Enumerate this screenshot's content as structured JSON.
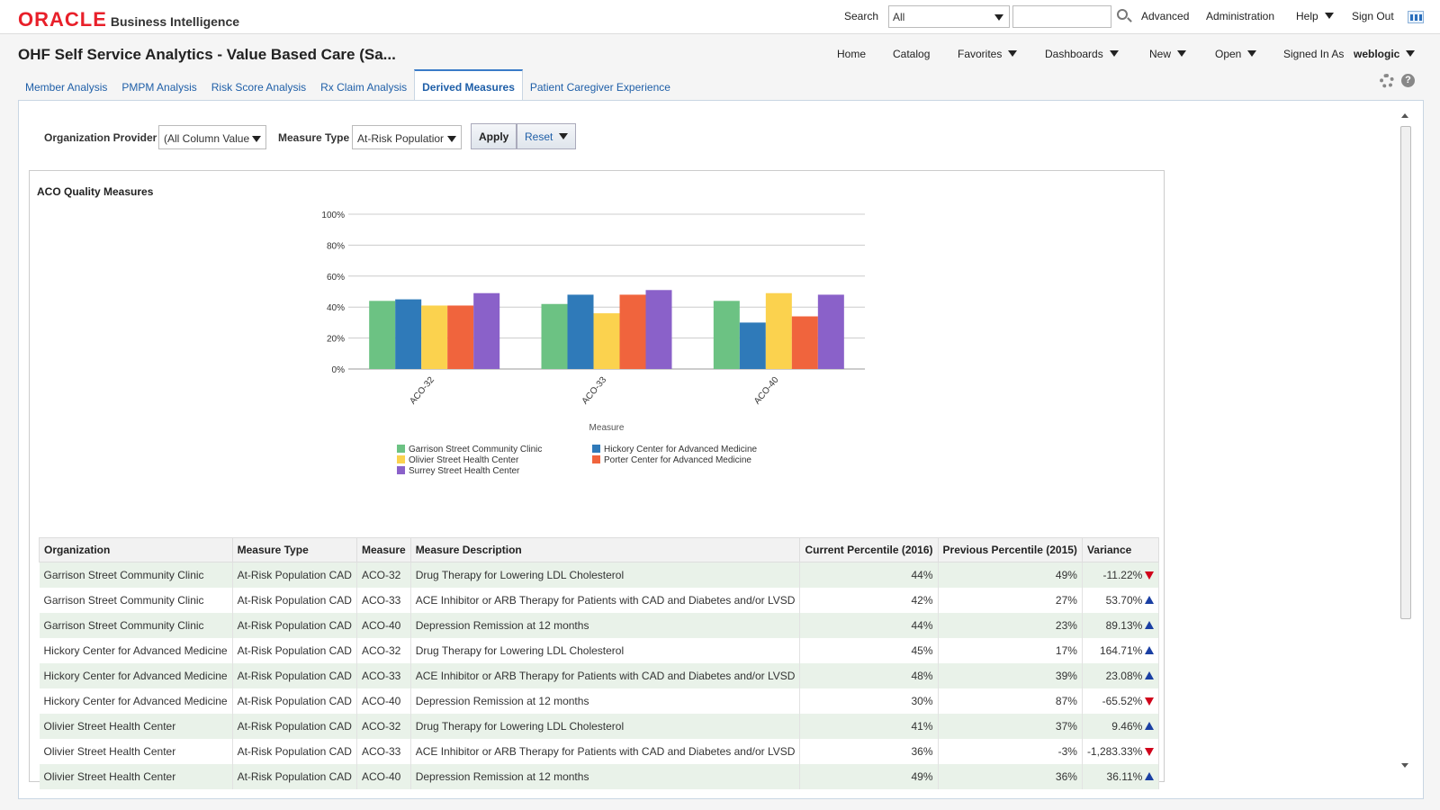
{
  "header": {
    "logo_oracle": "ORACLE",
    "logo_product": "Business Intelligence",
    "search_label": "Search",
    "search_scope": "All",
    "advanced": "Advanced",
    "administration": "Administration",
    "help": "Help",
    "sign_out": "Sign Out"
  },
  "titlebar": {
    "title": "OHF Self Service Analytics - Value Based Care (Sa...",
    "home": "Home",
    "catalog": "Catalog",
    "favorites": "Favorites",
    "dashboards": "Dashboards",
    "new": "New",
    "open": "Open",
    "signed_in_label": "Signed In As",
    "user": "weblogic"
  },
  "tabs": [
    "Member Analysis",
    "PMPM Analysis",
    "Risk Score Analysis",
    "Rx Claim Analysis",
    "Derived Measures",
    "Patient Caregiver Experience"
  ],
  "prompts": {
    "org_label": "Organization Provider",
    "org_value": "(All Column Value",
    "measure_label": "Measure Type",
    "measure_value": "At-Risk Populatior",
    "apply": "Apply",
    "reset": "Reset"
  },
  "chart_data": {
    "type": "bar",
    "title": "ACO Quality Measures",
    "xlabel": "Measure",
    "ylabel": "",
    "ylim": [
      0,
      100
    ],
    "yticks": [
      "0%",
      "20%",
      "40%",
      "60%",
      "80%",
      "100%"
    ],
    "categories": [
      "ACO-32",
      "ACO-33",
      "ACO-40"
    ],
    "series": [
      {
        "name": "Garrison Street Community Clinic",
        "color": "#6cc283",
        "values": [
          44,
          42,
          44
        ]
      },
      {
        "name": "Hickory Center for Advanced Medicine",
        "color": "#2f7ab9",
        "values": [
          45,
          48,
          30
        ]
      },
      {
        "name": "Olivier Street Health Center",
        "color": "#fbd24e",
        "values": [
          41,
          36,
          49
        ]
      },
      {
        "name": "Porter Center for Advanced Medicine",
        "color": "#f0643d",
        "values": [
          41,
          48,
          34
        ]
      },
      {
        "name": "Surrey Street Health Center",
        "color": "#8a61c9",
        "values": [
          49,
          51,
          48
        ]
      }
    ],
    "legend_position": "bottom"
  },
  "table": {
    "headers": [
      "Organization",
      "Measure Type",
      "Measure",
      "Measure Description",
      "Current Percentile (2016)",
      "Previous Percentile (2015)",
      "Variance"
    ],
    "rows": [
      {
        "org": "Garrison Street Community Clinic",
        "type": "At-Risk Population CAD",
        "measure": "ACO-32",
        "desc": "Drug Therapy for Lowering LDL Cholesterol",
        "cur": "44%",
        "prev": "49%",
        "var": "-11.22%",
        "dir": "down"
      },
      {
        "org": "Garrison Street Community Clinic",
        "type": "At-Risk Population CAD",
        "measure": "ACO-33",
        "desc": "ACE Inhibitor or ARB Therapy for Patients with CAD and Diabetes and/or LVSD",
        "cur": "42%",
        "prev": "27%",
        "var": "53.70%",
        "dir": "up"
      },
      {
        "org": "Garrison Street Community Clinic",
        "type": "At-Risk Population CAD",
        "measure": "ACO-40",
        "desc": "Depression Remission at 12 months",
        "cur": "44%",
        "prev": "23%",
        "var": "89.13%",
        "dir": "up"
      },
      {
        "org": "Hickory Center for Advanced Medicine",
        "type": "At-Risk Population CAD",
        "measure": "ACO-32",
        "desc": "Drug Therapy for Lowering LDL Cholesterol",
        "cur": "45%",
        "prev": "17%",
        "var": "164.71%",
        "dir": "up"
      },
      {
        "org": "Hickory Center for Advanced Medicine",
        "type": "At-Risk Population CAD",
        "measure": "ACO-33",
        "desc": "ACE Inhibitor or ARB Therapy for Patients with CAD and Diabetes and/or LVSD",
        "cur": "48%",
        "prev": "39%",
        "var": "23.08%",
        "dir": "up"
      },
      {
        "org": "Hickory Center for Advanced Medicine",
        "type": "At-Risk Population CAD",
        "measure": "ACO-40",
        "desc": "Depression Remission at 12 months",
        "cur": "30%",
        "prev": "87%",
        "var": "-65.52%",
        "dir": "down"
      },
      {
        "org": "Olivier Street Health Center",
        "type": "At-Risk Population CAD",
        "measure": "ACO-32",
        "desc": "Drug Therapy for Lowering LDL Cholesterol",
        "cur": "41%",
        "prev": "37%",
        "var": "9.46%",
        "dir": "up"
      },
      {
        "org": "Olivier Street Health Center",
        "type": "At-Risk Population CAD",
        "measure": "ACO-33",
        "desc": "ACE Inhibitor or ARB Therapy for Patients with CAD and Diabetes and/or LVSD",
        "cur": "36%",
        "prev": "-3%",
        "var": "-1,283.33%",
        "dir": "down"
      },
      {
        "org": "Olivier Street Health Center",
        "type": "At-Risk Population CAD",
        "measure": "ACO-40",
        "desc": "Depression Remission at 12 months",
        "cur": "49%",
        "prev": "36%",
        "var": "36.11%",
        "dir": "up"
      }
    ]
  }
}
